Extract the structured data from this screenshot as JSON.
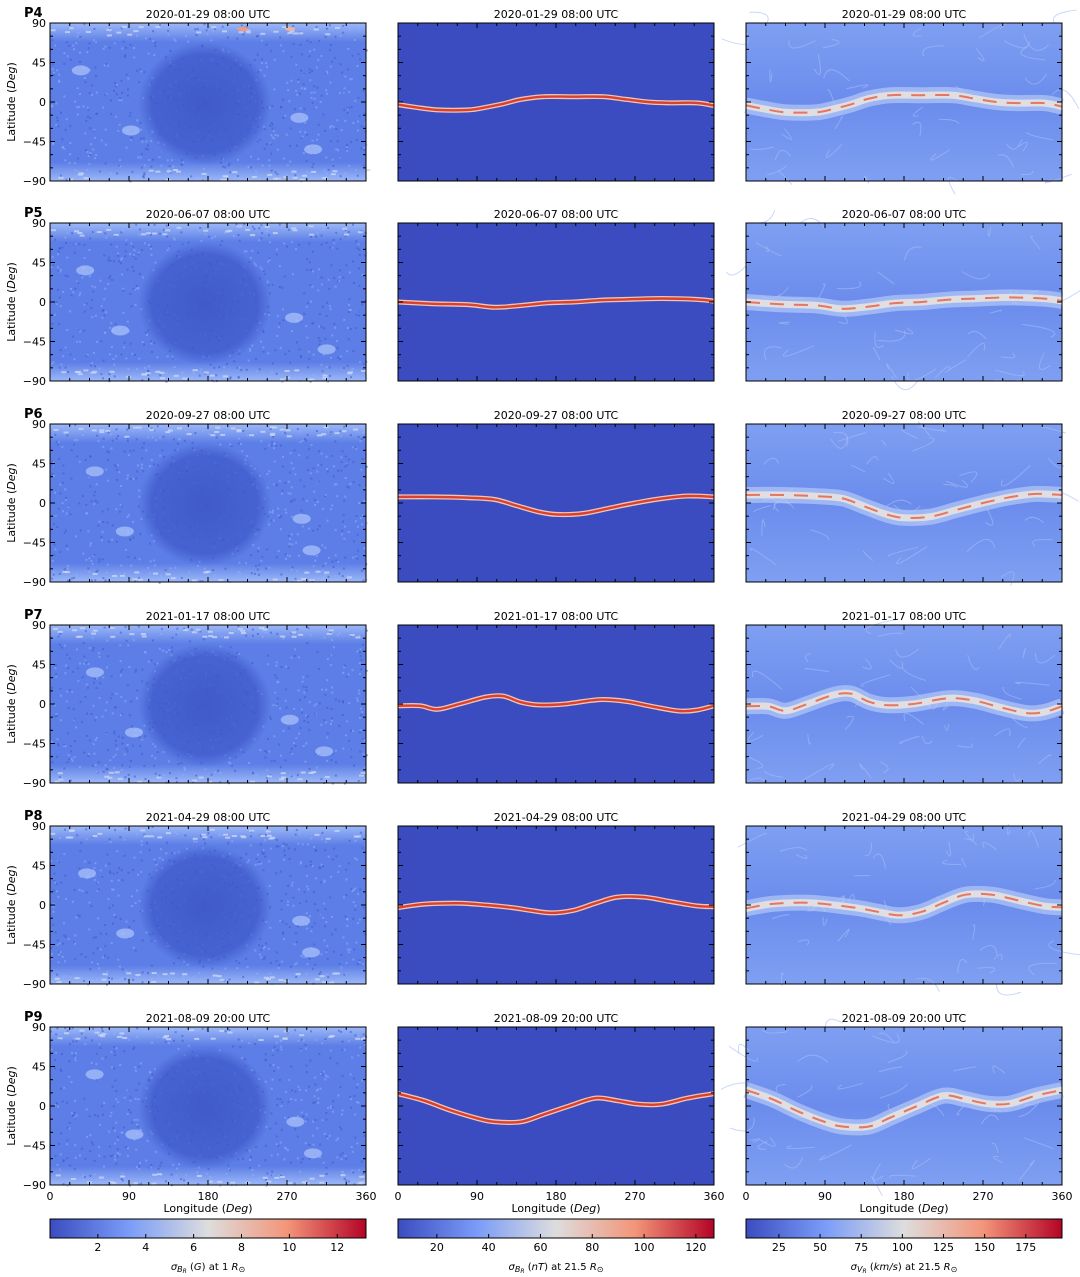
{
  "chart_data": {
    "type": "heatmap",
    "layout": "6 rows x 3 columns of longitude-latitude maps",
    "xlabel": "Longitude (Deg)",
    "ylabel": "Latitude (Deg)",
    "x_ticks": [
      "0",
      "90",
      "180",
      "270",
      "360"
    ],
    "y_ticks": [
      "90",
      "45",
      "0",
      "−45",
      "−90"
    ],
    "xlim": [
      0,
      360
    ],
    "ylim": [
      -90,
      90
    ],
    "rows": [
      {
        "label": "P4",
        "date": "2020-01-29 08:00 UTC",
        "hcs": [
          [
            0,
            -3
          ],
          [
            20,
            -6
          ],
          [
            45,
            -9
          ],
          [
            80,
            -9
          ],
          [
            100,
            -6
          ],
          [
            120,
            -2
          ],
          [
            140,
            3
          ],
          [
            165,
            6
          ],
          [
            200,
            6
          ],
          [
            235,
            6
          ],
          [
            260,
            3
          ],
          [
            285,
            0
          ],
          [
            310,
            -1
          ],
          [
            340,
            -1
          ],
          [
            360,
            -4
          ]
        ]
      },
      {
        "label": "P5",
        "date": "2020-06-07 08:00 UTC",
        "hcs": [
          [
            0,
            0
          ],
          [
            40,
            -2
          ],
          [
            80,
            -3
          ],
          [
            110,
            -6
          ],
          [
            140,
            -4
          ],
          [
            170,
            -1
          ],
          [
            200,
            0
          ],
          [
            230,
            2
          ],
          [
            260,
            3
          ],
          [
            300,
            4
          ],
          [
            340,
            3
          ],
          [
            360,
            1
          ]
        ]
      },
      {
        "label": "P6",
        "date": "2020-09-27 08:00 UTC",
        "hcs": [
          [
            0,
            7
          ],
          [
            40,
            7
          ],
          [
            80,
            6
          ],
          [
            110,
            4
          ],
          [
            135,
            -3
          ],
          [
            160,
            -10
          ],
          [
            180,
            -13
          ],
          [
            210,
            -12
          ],
          [
            240,
            -6
          ],
          [
            270,
            0
          ],
          [
            300,
            5
          ],
          [
            330,
            8
          ],
          [
            360,
            7
          ]
        ]
      },
      {
        "label": "P7",
        "date": "2021-01-17 08:00 UTC",
        "hcs": [
          [
            0,
            -2
          ],
          [
            25,
            -2
          ],
          [
            45,
            -6
          ],
          [
            70,
            0
          ],
          [
            100,
            8
          ],
          [
            120,
            9
          ],
          [
            140,
            2
          ],
          [
            160,
            -1
          ],
          [
            190,
            0
          ],
          [
            230,
            5
          ],
          [
            260,
            3
          ],
          [
            290,
            -3
          ],
          [
            320,
            -8
          ],
          [
            340,
            -7
          ],
          [
            360,
            -2
          ]
        ]
      },
      {
        "label": "P8",
        "date": "2021-04-29 08:00 UTC",
        "hcs": [
          [
            0,
            -3
          ],
          [
            30,
            1
          ],
          [
            70,
            2
          ],
          [
            100,
            0
          ],
          [
            130,
            -3
          ],
          [
            150,
            -6
          ],
          [
            175,
            -9
          ],
          [
            200,
            -6
          ],
          [
            225,
            2
          ],
          [
            250,
            9
          ],
          [
            280,
            9
          ],
          [
            310,
            4
          ],
          [
            340,
            -1
          ],
          [
            360,
            -2
          ]
        ]
      },
      {
        "label": "P9",
        "date": "2021-08-09 20:00 UTC",
        "hcs": [
          [
            0,
            14
          ],
          [
            30,
            6
          ],
          [
            60,
            -5
          ],
          [
            90,
            -14
          ],
          [
            110,
            -18
          ],
          [
            140,
            -18
          ],
          [
            165,
            -10
          ],
          [
            195,
            0
          ],
          [
            225,
            9
          ],
          [
            250,
            6
          ],
          [
            275,
            2
          ],
          [
            300,
            2
          ],
          [
            330,
            9
          ],
          [
            360,
            14
          ]
        ]
      }
    ],
    "colorbars": [
      {
        "label": "σBR (G) at 1 R⊙",
        "ticks": [
          "2",
          "4",
          "6",
          "8",
          "10",
          "12"
        ],
        "values": [
          2,
          4,
          6,
          8,
          10,
          12
        ],
        "range": [
          0,
          13.2
        ]
      },
      {
        "label": "σBR (nT) at 21.5 R⊙",
        "ticks": [
          "20",
          "40",
          "60",
          "80",
          "100",
          "120"
        ],
        "values": [
          20,
          40,
          60,
          80,
          100,
          120
        ],
        "range": [
          5,
          127
        ]
      },
      {
        "label": "σVR (km/s) at 21.5 R⊙",
        "ticks": [
          "25",
          "50",
          "75",
          "100",
          "125",
          "150",
          "175"
        ],
        "values": [
          25,
          50,
          75,
          100,
          125,
          150,
          175
        ],
        "range": [
          5,
          197
        ]
      }
    ],
    "colormap": [
      "#3b4cc0",
      "#7a9cf8",
      "#dddddd",
      "#f3957a",
      "#b40426"
    ]
  }
}
